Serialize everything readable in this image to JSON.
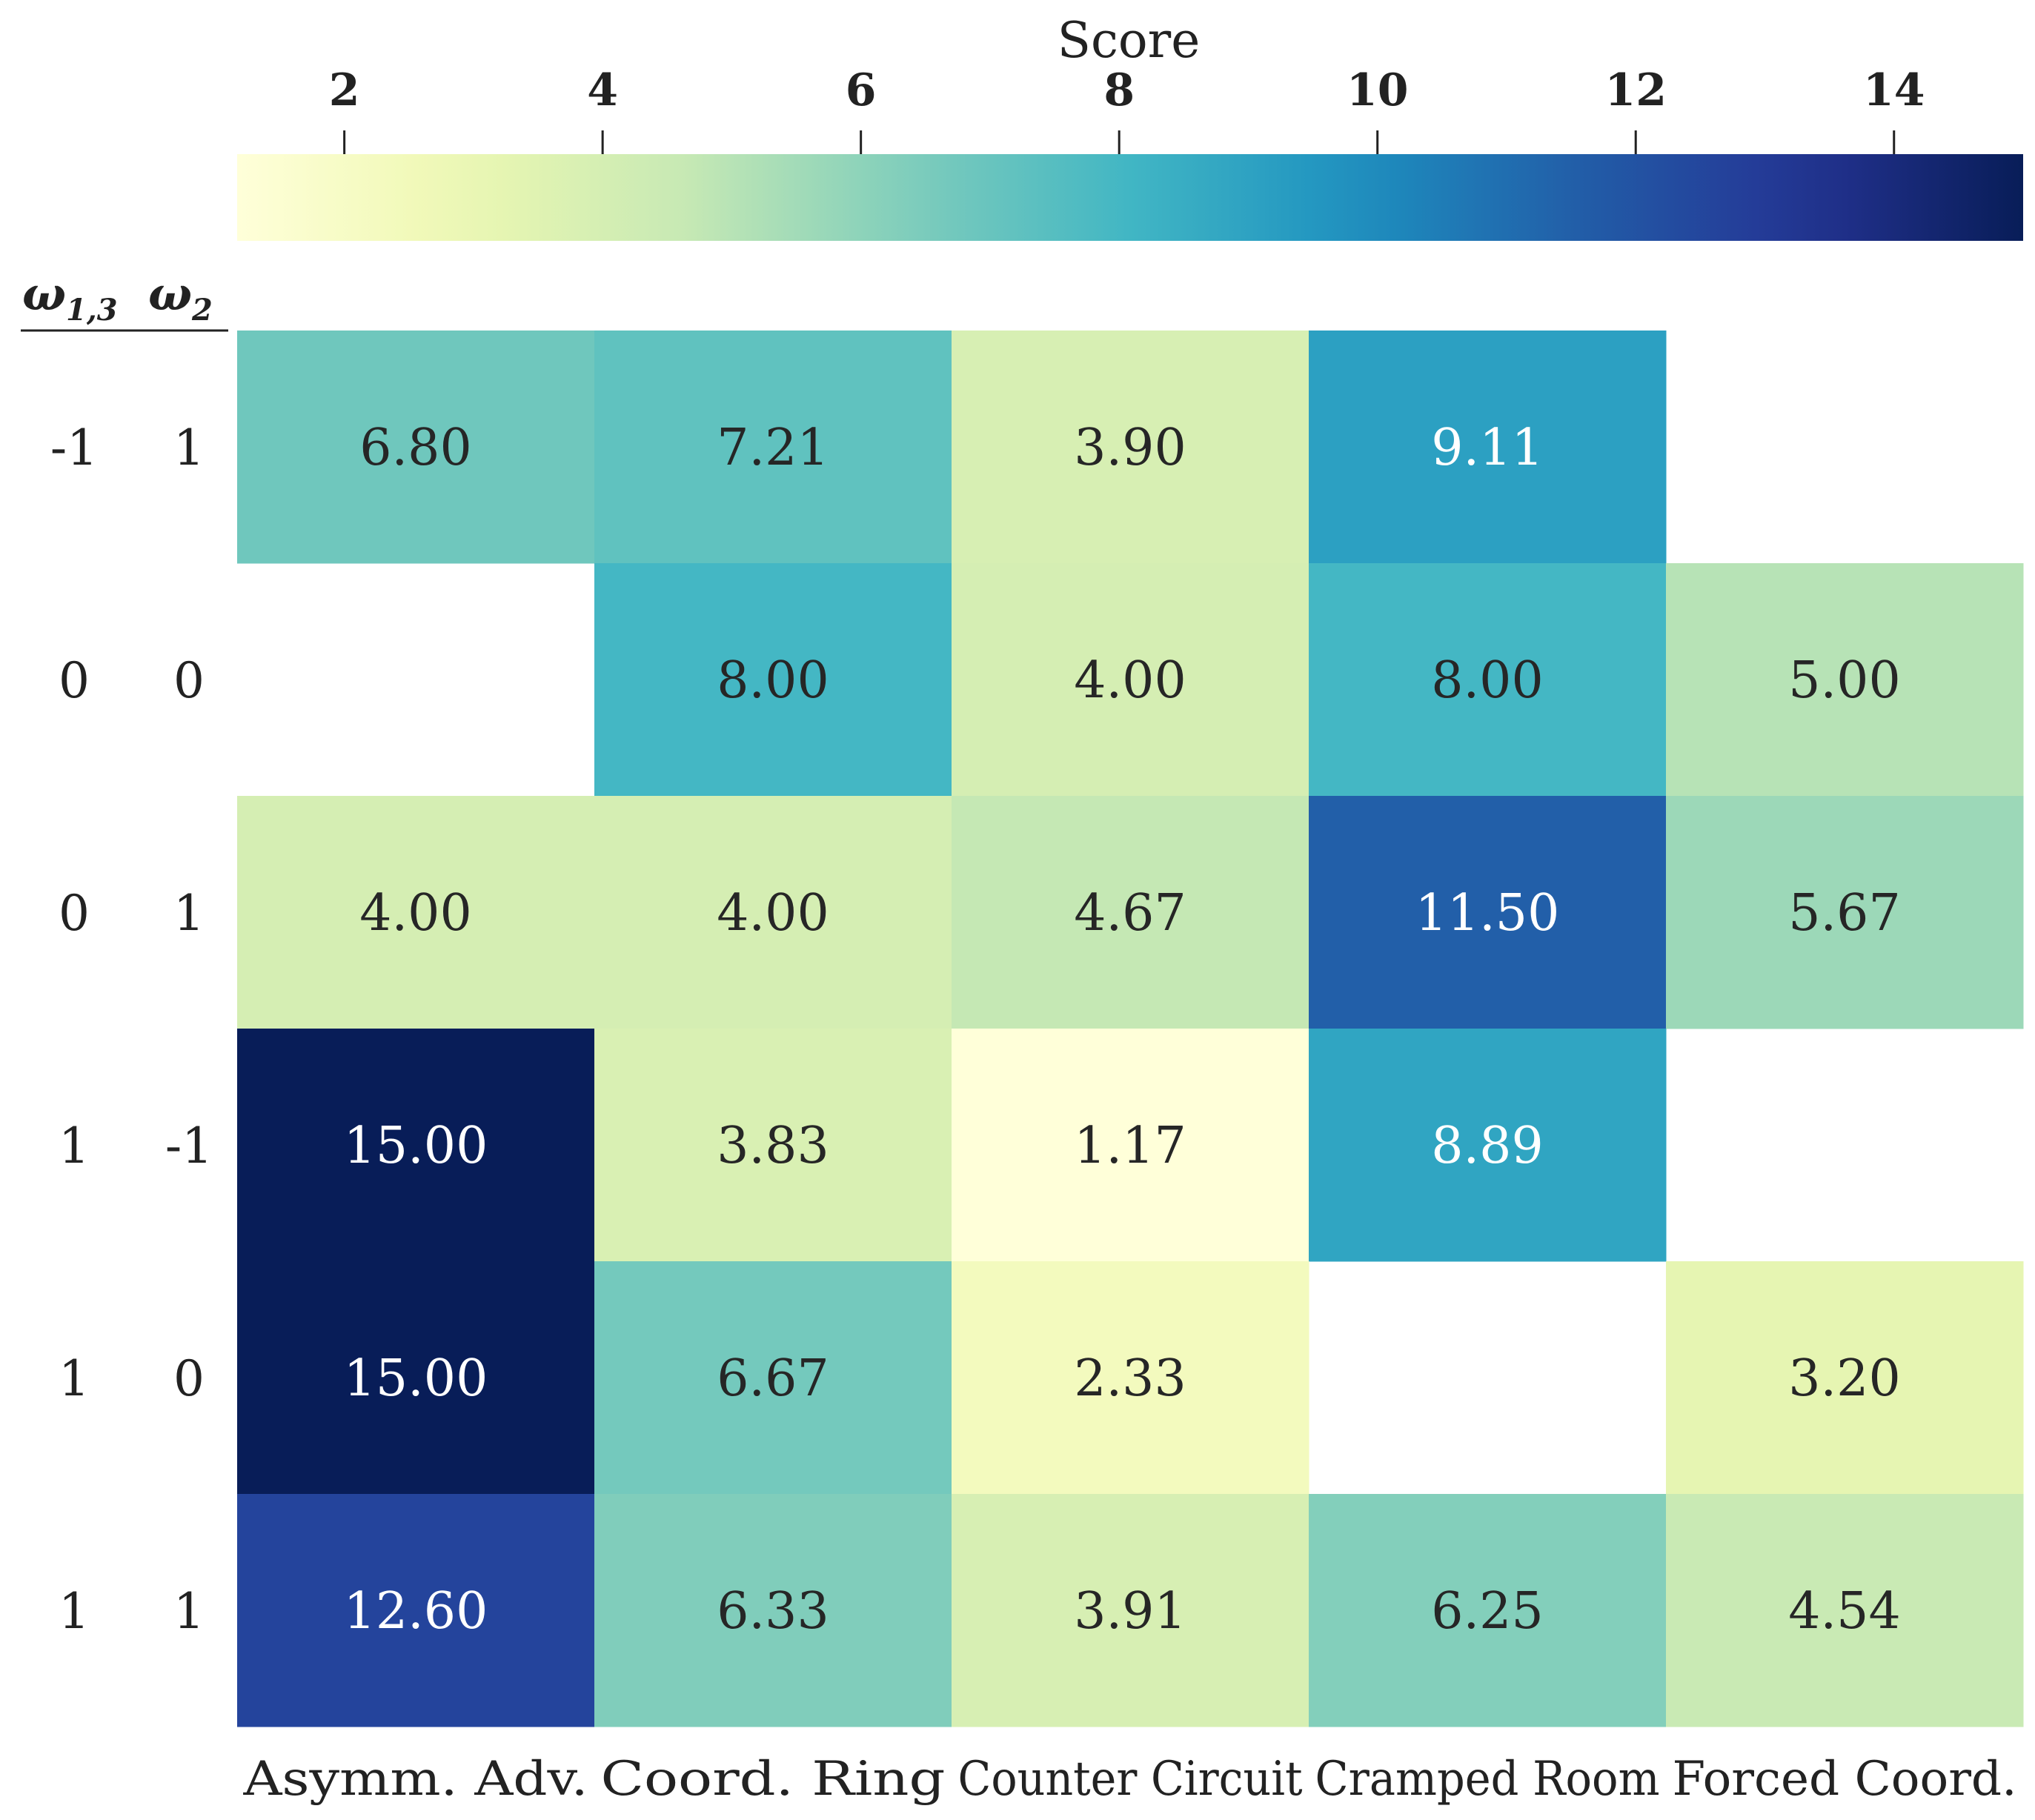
{
  "chart_data": {
    "type": "heatmap",
    "colorbar": {
      "label": "Score",
      "min": 1.17,
      "max": 15.0,
      "ticks": [
        2,
        4,
        6,
        8,
        10,
        12,
        14
      ],
      "tick_labels": [
        "2",
        "4",
        "6",
        "8",
        "10",
        "12",
        "14"
      ],
      "colormap": "YlGnBu"
    },
    "row_header": {
      "col1": "ω1,3",
      "col2": "ω2"
    },
    "rows": [
      {
        "w13": "-1",
        "w2": "1"
      },
      {
        "w13": "0",
        "w2": "0"
      },
      {
        "w13": "0",
        "w2": "1"
      },
      {
        "w13": "1",
        "w2": "-1"
      },
      {
        "w13": "1",
        "w2": "0"
      },
      {
        "w13": "1",
        "w2": "1"
      }
    ],
    "columns": [
      "Asymm.  Adv.",
      "Coord.  Ring",
      "Counter Circuit",
      "Cramped Room",
      "Forced Coord."
    ],
    "values": [
      [
        6.8,
        7.21,
        3.9,
        9.11,
        null
      ],
      [
        null,
        8.0,
        4.0,
        8.0,
        5.0
      ],
      [
        4.0,
        4.0,
        4.67,
        11.5,
        5.67
      ],
      [
        15.0,
        3.83,
        1.17,
        8.89,
        null
      ],
      [
        15.0,
        6.67,
        2.33,
        null,
        3.2
      ],
      [
        12.6,
        6.33,
        3.91,
        6.25,
        4.54
      ]
    ],
    "value_labels": [
      [
        "6.80",
        "7.21",
        "3.90",
        "9.11",
        null
      ],
      [
        null,
        "8.00",
        "4.00",
        "8.00",
        "5.00"
      ],
      [
        "4.00",
        "4.00",
        "4.67",
        "11.50",
        "5.67"
      ],
      [
        "15.00",
        "3.83",
        "1.17",
        "8.89",
        null
      ],
      [
        "15.00",
        "6.67",
        "2.33",
        null,
        "3.20"
      ],
      [
        "12.60",
        "6.33",
        "3.91",
        "6.25",
        "4.54"
      ]
    ]
  }
}
